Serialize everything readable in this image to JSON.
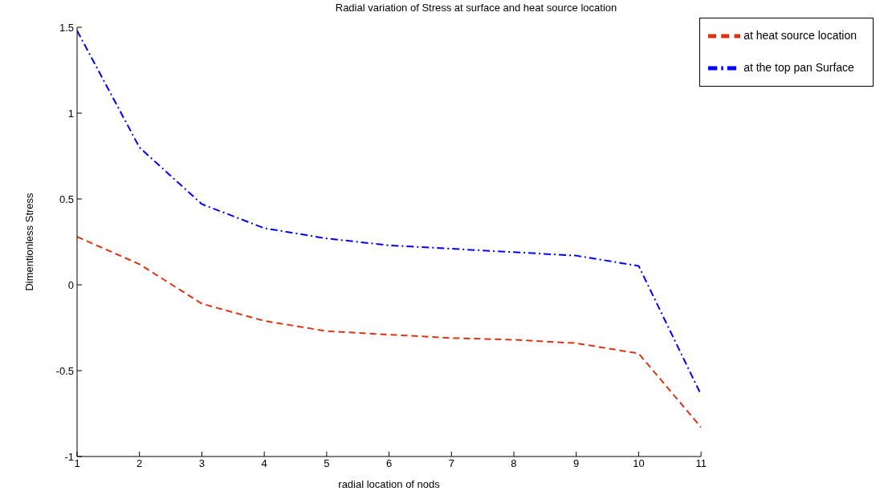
{
  "chart_data": {
    "type": "line",
    "title": "Radial variation of Stress at surface and heat source location",
    "xlabel": "radial location of nods",
    "ylabel": "Dimentionless Stress",
    "x": [
      1,
      2,
      3,
      4,
      5,
      6,
      7,
      8,
      9,
      10,
      11
    ],
    "xlim": [
      1,
      11
    ],
    "xticks": [
      1,
      2,
      3,
      4,
      5,
      6,
      7,
      8,
      9,
      10,
      11
    ],
    "ylim": [
      -1,
      1.5
    ],
    "yticks": [
      -1,
      -0.5,
      0,
      0.5,
      1,
      1.5
    ],
    "grid": false,
    "legend": "top right",
    "marker": "none",
    "series": [
      {
        "name": "at the top pan Surface",
        "color": "#0000ff",
        "line_style": "dashdot",
        "values": [
          1.48,
          0.8,
          0.47,
          0.33,
          0.27,
          0.23,
          0.21,
          0.19,
          0.17,
          0.11,
          -0.64
        ]
      },
      {
        "name": "at heat source location",
        "color": "#dd3311",
        "line_style": "dashed",
        "values": [
          0.28,
          0.12,
          -0.11,
          -0.21,
          -0.27,
          -0.29,
          -0.31,
          -0.32,
          -0.34,
          -0.4,
          -0.83
        ]
      }
    ]
  }
}
